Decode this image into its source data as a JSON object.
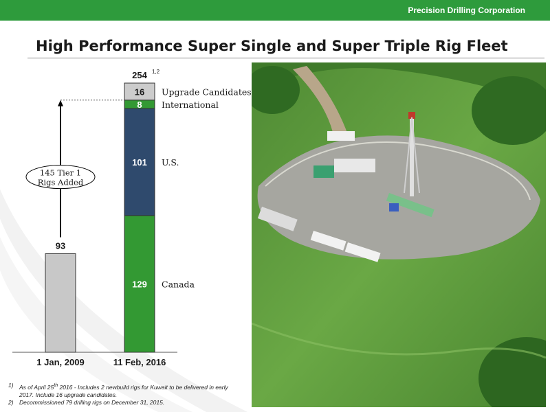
{
  "header": {
    "company": "Precision Drilling Corporation",
    "accent_color": "#2e9b3c"
  },
  "page_title": "High Performance Super Single and Super Triple Rig Fleet",
  "chart_data": {
    "type": "bar",
    "stacked": true,
    "categories": [
      "1 Jan, 2009",
      "11 Feb, 2016"
    ],
    "ylim": [
      0,
      254
    ],
    "grid": false,
    "legend": "none",
    "bars": [
      {
        "category": "1 Jan, 2009",
        "total_label": "93",
        "segments": [
          {
            "name": "",
            "value": 93,
            "color": "#c8c8c8",
            "value_label": ""
          }
        ]
      },
      {
        "category": "11 Feb, 2016",
        "total_label": "254",
        "total_superscript": "1,2",
        "segments": [
          {
            "name": "Canada",
            "value": 129,
            "color": "#339933",
            "value_label": "129"
          },
          {
            "name": "U.S.",
            "value": 101,
            "color": "#2f4a6d",
            "value_label": "101"
          },
          {
            "name": "International",
            "value": 8,
            "color": "#339933",
            "value_label": "8"
          },
          {
            "name": "Upgrade Candidates",
            "value": 16,
            "color": "#cccccc",
            "value_label": "16"
          }
        ]
      }
    ],
    "annotation": {
      "lines": [
        "145 Tier 1",
        "Rigs Added"
      ],
      "from_value": 93,
      "to_value": 238
    }
  },
  "footnotes": [
    {
      "num": "1)",
      "text_parts": [
        "As of April 25",
        "th",
        " 2016 - Includes 2 newbuild rigs for Kuwait to be delivered in early 2017. Include 16 upgrade candidates."
      ]
    },
    {
      "num": "2)",
      "text_parts": [
        "Decommissioned 79 drilling rigs on December 31, 2015.",
        "",
        ""
      ]
    }
  ],
  "photo": {
    "subject": "aerial-drilling-rig-pad",
    "grass_color": "#5c9a3a",
    "pad_color": "#9a9a94"
  }
}
